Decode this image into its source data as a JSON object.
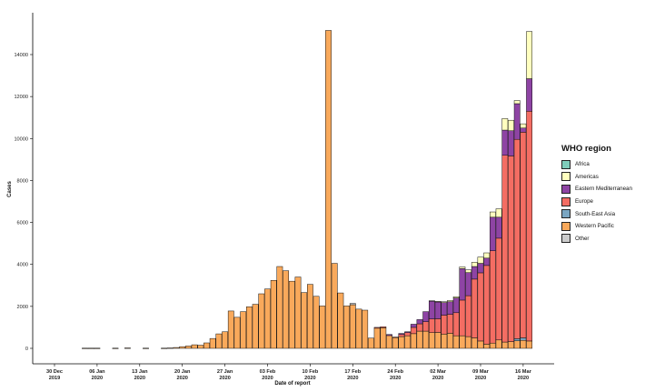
{
  "chart_data": {
    "type": "bar",
    "stacked": true,
    "xlabel": "Date of report",
    "ylabel": "Cases",
    "ylim": [
      0,
      15500
    ],
    "yticks": [
      0,
      2000,
      4000,
      6000,
      8000,
      10000,
      12000,
      14000
    ],
    "xtick_labels": [
      {
        "day": 0,
        "label": "30 Dec",
        "label2": "2019"
      },
      {
        "day": 7,
        "label": "06 Jan",
        "label2": "2020"
      },
      {
        "day": 14,
        "label": "13 Jan",
        "label2": "2020"
      },
      {
        "day": 21,
        "label": "20 Jan",
        "label2": "2020"
      },
      {
        "day": 28,
        "label": "27 Jan",
        "label2": "2020"
      },
      {
        "day": 35,
        "label": "03 Feb",
        "label2": "2020"
      },
      {
        "day": 42,
        "label": "10 Feb",
        "label2": "2020"
      },
      {
        "day": 49,
        "label": "17 Feb",
        "label2": "2020"
      },
      {
        "day": 56,
        "label": "24 Feb",
        "label2": "2020"
      },
      {
        "day": 63,
        "label": "02 Mar",
        "label2": "2020"
      },
      {
        "day": 70,
        "label": "09 Mar",
        "label2": "2020"
      },
      {
        "day": 77,
        "label": "16 Mar",
        "label2": "2020"
      }
    ],
    "series_order": [
      "Western Pacific",
      "South-East Asia",
      "Europe",
      "Eastern Mediterranean",
      "Americas",
      "Africa",
      "Other"
    ],
    "legend": {
      "title": "WHO region",
      "position": "right",
      "items": [
        {
          "name": "Africa",
          "color": "#7fcdbb"
        },
        {
          "name": "Americas",
          "color": "#ffffbf"
        },
        {
          "name": "Eastern Mediterranean",
          "color": "#8e44a4"
        },
        {
          "name": "Europe",
          "color": "#f46d63"
        },
        {
          "name": "South-East Asia",
          "color": "#7aa6c2"
        },
        {
          "name": "Western Pacific",
          "color": "#f9a95b"
        },
        {
          "name": "Other",
          "color": "#cccccc"
        }
      ]
    },
    "bars": [
      {
        "date": "2020-01-04",
        "values": {
          "Western Pacific": 10
        }
      },
      {
        "date": "2020-01-05",
        "values": {
          "Western Pacific": 10
        }
      },
      {
        "date": "2020-01-06",
        "values": {
          "Western Pacific": 10
        }
      },
      {
        "date": "2020-01-09",
        "values": {
          "Western Pacific": 10
        }
      },
      {
        "date": "2020-01-11",
        "values": {
          "Western Pacific": 20
        }
      },
      {
        "date": "2020-01-14",
        "values": {
          "Western Pacific": 10
        }
      },
      {
        "date": "2020-01-17",
        "values": {
          "Western Pacific": 10
        }
      },
      {
        "date": "2020-01-18",
        "values": {
          "Western Pacific": 20
        }
      },
      {
        "date": "2020-01-19",
        "values": {
          "Western Pacific": 40
        }
      },
      {
        "date": "2020-01-20",
        "values": {
          "Western Pacific": 80
        }
      },
      {
        "date": "2020-01-21",
        "values": {
          "Western Pacific": 110
        }
      },
      {
        "date": "2020-01-22",
        "values": {
          "Western Pacific": 170
        }
      },
      {
        "date": "2020-01-23",
        "values": {
          "Western Pacific": 150
        }
      },
      {
        "date": "2020-01-24",
        "values": {
          "Western Pacific": 260
        }
      },
      {
        "date": "2020-01-25",
        "values": {
          "Western Pacific": 470
        }
      },
      {
        "date": "2020-01-26",
        "values": {
          "Western Pacific": 690
        }
      },
      {
        "date": "2020-01-27",
        "values": {
          "Western Pacific": 790
        }
      },
      {
        "date": "2020-01-28",
        "values": {
          "Western Pacific": 1780
        }
      },
      {
        "date": "2020-01-29",
        "values": {
          "Western Pacific": 1480
        }
      },
      {
        "date": "2020-01-30",
        "values": {
          "Western Pacific": 1750
        }
      },
      {
        "date": "2020-01-31",
        "values": {
          "Western Pacific": 1980
        }
      },
      {
        "date": "2020-02-01",
        "values": {
          "Western Pacific": 2100
        }
      },
      {
        "date": "2020-02-02",
        "values": {
          "Western Pacific": 2600
        }
      },
      {
        "date": "2020-02-03",
        "values": {
          "Western Pacific": 2830
        }
      },
      {
        "date": "2020-02-04",
        "values": {
          "Western Pacific": 3240
        }
      },
      {
        "date": "2020-02-05",
        "values": {
          "Western Pacific": 3900
        }
      },
      {
        "date": "2020-02-06",
        "values": {
          "Western Pacific": 3700
        }
      },
      {
        "date": "2020-02-07",
        "values": {
          "Western Pacific": 3200
        }
      },
      {
        "date": "2020-02-08",
        "values": {
          "Western Pacific": 3400
        }
      },
      {
        "date": "2020-02-09",
        "values": {
          "Western Pacific": 2660
        }
      },
      {
        "date": "2020-02-10",
        "values": {
          "Western Pacific": 3050
        }
      },
      {
        "date": "2020-02-11",
        "values": {
          "Western Pacific": 2480
        }
      },
      {
        "date": "2020-02-12",
        "values": {
          "Western Pacific": 2020
        }
      },
      {
        "date": "2020-02-13",
        "values": {
          "Western Pacific": 15150
        }
      },
      {
        "date": "2020-02-14",
        "values": {
          "Western Pacific": 4050
        }
      },
      {
        "date": "2020-02-15",
        "values": {
          "Western Pacific": 2640
        }
      },
      {
        "date": "2020-02-16",
        "values": {
          "Western Pacific": 2020
        }
      },
      {
        "date": "2020-02-17",
        "values": {
          "Western Pacific": 2080,
          "Other": 60
        }
      },
      {
        "date": "2020-02-18",
        "values": {
          "Western Pacific": 1870
        }
      },
      {
        "date": "2020-02-19",
        "values": {
          "Western Pacific": 1820
        }
      },
      {
        "date": "2020-02-20",
        "values": {
          "Western Pacific": 490
        }
      },
      {
        "date": "2020-02-21",
        "values": {
          "Western Pacific": 960,
          "Europe": 40
        }
      },
      {
        "date": "2020-02-22",
        "values": {
          "Western Pacific": 980,
          "Europe": 50
        }
      },
      {
        "date": "2020-02-23",
        "values": {
          "Western Pacific": 610,
          "Eastern Mediterranean": 50
        }
      },
      {
        "date": "2020-02-24",
        "values": {
          "Western Pacific": 510,
          "Europe": 30
        }
      },
      {
        "date": "2020-02-25",
        "values": {
          "Western Pacific": 560,
          "Europe": 100,
          "Eastern Mediterranean": 50
        }
      },
      {
        "date": "2020-02-26",
        "values": {
          "Western Pacific": 600,
          "Europe": 150,
          "Eastern Mediterranean": 40
        }
      },
      {
        "date": "2020-02-27",
        "values": {
          "Western Pacific": 700,
          "Europe": 300,
          "Eastern Mediterranean": 150
        }
      },
      {
        "date": "2020-02-28",
        "values": {
          "Western Pacific": 820,
          "Europe": 350,
          "Eastern Mediterranean": 200
        }
      },
      {
        "date": "2020-02-29",
        "values": {
          "Western Pacific": 820,
          "Europe": 450,
          "Eastern Mediterranean": 480
        }
      },
      {
        "date": "2020-03-01",
        "values": {
          "Western Pacific": 750,
          "Europe": 650,
          "Eastern Mediterranean": 850,
          "Americas": 20
        }
      },
      {
        "date": "2020-03-02",
        "values": {
          "Western Pacific": 760,
          "Europe": 650,
          "Eastern Mediterranean": 800,
          "Americas": 30
        }
      },
      {
        "date": "2020-03-03",
        "values": {
          "Western Pacific": 680,
          "Europe": 900,
          "Eastern Mediterranean": 600,
          "Americas": 40
        }
      },
      {
        "date": "2020-03-04",
        "values": {
          "Western Pacific": 720,
          "Europe": 900,
          "Eastern Mediterranean": 600,
          "Americas": 60
        }
      },
      {
        "date": "2020-03-05",
        "values": {
          "Western Pacific": 600,
          "Europe": 1100,
          "Eastern Mediterranean": 700,
          "Americas": 60
        }
      },
      {
        "date": "2020-03-06",
        "values": {
          "Western Pacific": 600,
          "Europe": 1700,
          "Eastern Mediterranean": 1500,
          "Americas": 80
        }
      },
      {
        "date": "2020-03-07",
        "values": {
          "Western Pacific": 560,
          "Europe": 1950,
          "Eastern Mediterranean": 1100,
          "Americas": 130
        }
      },
      {
        "date": "2020-03-08",
        "values": {
          "Western Pacific": 500,
          "Europe": 2800,
          "Eastern Mediterranean": 600,
          "Americas": 200
        }
      },
      {
        "date": "2020-03-09",
        "values": {
          "Western Pacific": 350,
          "Europe": 3250,
          "Eastern Mediterranean": 450,
          "Americas": 300
        }
      },
      {
        "date": "2020-03-10",
        "values": {
          "Western Pacific": 200,
          "Europe": 3750,
          "Eastern Mediterranean": 350,
          "Americas": 250
        }
      },
      {
        "date": "2020-03-11",
        "values": {
          "Western Pacific": 250,
          "Europe": 4400,
          "Eastern Mediterranean": 1600,
          "Americas": 250
        }
      },
      {
        "date": "2020-03-12",
        "values": {
          "Western Pacific": 400,
          "Europe": 4850,
          "Eastern Mediterranean": 1000,
          "Americas": 400
        }
      },
      {
        "date": "2020-03-13",
        "values": {
          "Western Pacific": 300,
          "Europe": 8900,
          "Eastern Mediterranean": 1200,
          "Americas": 550
        }
      },
      {
        "date": "2020-03-14",
        "values": {
          "Western Pacific": 320,
          "Europe": 8850,
          "Eastern Mediterranean": 1200,
          "Americas": 500
        }
      },
      {
        "date": "2020-03-15",
        "values": {
          "Western Pacific": 360,
          "South-East Asia": 100,
          "Europe": 9500,
          "Eastern Mediterranean": 1700,
          "Americas": 150
        }
      },
      {
        "date": "2020-03-16",
        "values": {
          "Western Pacific": 380,
          "South-East Asia": 120,
          "Europe": 9800,
          "Eastern Mediterranean": 200,
          "Americas": 200
        }
      },
      {
        "date": "2020-03-17",
        "values": {
          "Western Pacific": 350,
          "Europe": 10950,
          "Eastern Mediterranean": 1550,
          "Americas": 2250
        }
      }
    ]
  }
}
